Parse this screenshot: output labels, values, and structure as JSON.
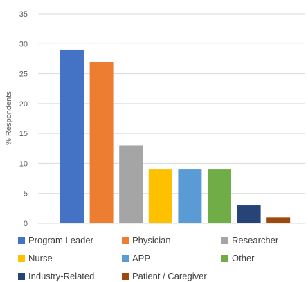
{
  "chart_data": {
    "type": "bar",
    "title": "",
    "xlabel": "",
    "ylabel": "% Respondents",
    "ylim": [
      0,
      35
    ],
    "yticks": [
      0,
      5,
      10,
      15,
      20,
      25,
      30,
      35
    ],
    "grid": true,
    "legend_position": "bottom",
    "categories": [
      "Program Leader",
      "Physician",
      "Researcher",
      "Nurse",
      "APP",
      "Other",
      "Industry-Related",
      "Patient / Caregiver"
    ],
    "values": [
      29,
      27,
      13,
      9,
      9,
      9,
      3,
      1
    ],
    "colors": [
      "#4472C4",
      "#ED7D31",
      "#A5A5A5",
      "#FFC000",
      "#5B9BD5",
      "#70AD47",
      "#264478",
      "#9E480E"
    ]
  }
}
